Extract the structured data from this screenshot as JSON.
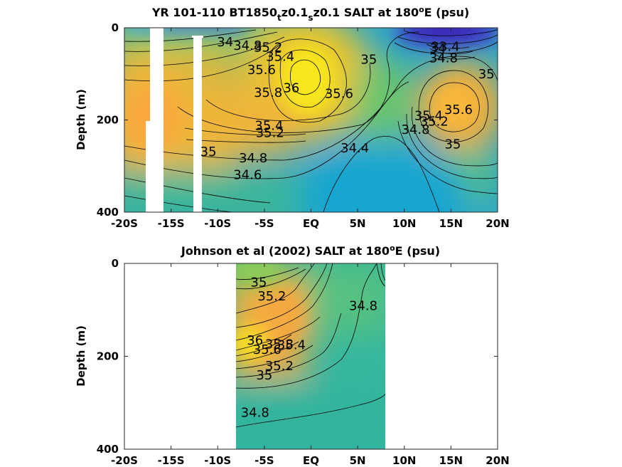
{
  "chart_data": [
    {
      "type": "heatmap",
      "title": {
        "pre": "YR 101-110 BT1850",
        "sub1": "t",
        "mid": "z0.1",
        "sub2": "s",
        "post": "z0.1 SALT at 180",
        "sup": "o",
        "end": "E (psu)"
      },
      "ylabel": "Depth (m)",
      "xlim": [
        -20,
        20
      ],
      "ylim": [
        400,
        0
      ],
      "xticks": [
        -20,
        -15,
        -10,
        -5,
        0,
        5,
        10,
        15,
        20
      ],
      "xticklabels": [
        "-20S",
        "-15S",
        "-10S",
        "-5S",
        "EQ",
        "5N",
        "10N",
        "15N",
        "20N"
      ],
      "yticks": [
        0,
        200,
        400
      ],
      "yticklabels": [
        "0",
        "200",
        "400"
      ],
      "contour_labels": [
        {
          "text": "34",
          "x": -9.2,
          "y": 40
        },
        {
          "text": "34.8",
          "x": -6.8,
          "y": 48
        },
        {
          "text": "35.2",
          "x": -4.6,
          "y": 52
        },
        {
          "text": "35.4",
          "x": -3.3,
          "y": 72
        },
        {
          "text": "35.6",
          "x": -5.3,
          "y": 100
        },
        {
          "text": "35.8",
          "x": -4.6,
          "y": 150
        },
        {
          "text": "36",
          "x": -2.1,
          "y": 140
        },
        {
          "text": "35",
          "x": 6.2,
          "y": 78
        },
        {
          "text": "35.6",
          "x": 3.0,
          "y": 152
        },
        {
          "text": "35.4",
          "x": -4.5,
          "y": 222
        },
        {
          "text": "35.2",
          "x": -4.4,
          "y": 237
        },
        {
          "text": "35",
          "x": -11.0,
          "y": 278
        },
        {
          "text": "34.8",
          "x": -6.2,
          "y": 292
        },
        {
          "text": "34.6",
          "x": -6.8,
          "y": 328
        },
        {
          "text": "34.4",
          "x": 4.7,
          "y": 270
        },
        {
          "text": "35.6",
          "x": 15.8,
          "y": 187
        },
        {
          "text": "35",
          "x": 15.2,
          "y": 262
        },
        {
          "text": "35",
          "x": 18.8,
          "y": 110
        },
        {
          "text": "35.4",
          "x": 12.6,
          "y": 200
        },
        {
          "text": "35.2",
          "x": 13.2,
          "y": 212
        },
        {
          "text": "34.8",
          "x": 11.2,
          "y": 230
        },
        {
          "text": "34",
          "x": 13.6,
          "y": 54
        },
        {
          "text": "33.4",
          "x": 14.4,
          "y": 50
        },
        {
          "text": "34.8",
          "x": 14.2,
          "y": 75
        }
      ],
      "missing_columns": [
        [
          -17.6,
          -16.3
        ],
        [
          -12.8,
          -11.8
        ]
      ]
    },
    {
      "type": "heatmap",
      "title": {
        "pre": "Johnson et al (2002) SALT at 180",
        "sup": "o",
        "end": "E (psu)"
      },
      "ylabel": "Depth (m)",
      "xlim": [
        -20,
        20
      ],
      "ylim": [
        400,
        0
      ],
      "xticks": [
        -20,
        -15,
        -10,
        -5,
        0,
        5,
        10,
        15,
        20
      ],
      "xticklabels": [
        "-20S",
        "-15S",
        "-10S",
        "-5S",
        "EQ",
        "5N",
        "10N",
        "15N",
        "20N"
      ],
      "yticks": [
        0,
        200,
        400
      ],
      "yticklabels": [
        "0",
        "200",
        "400"
      ],
      "data_extent_x": [
        -8,
        8
      ],
      "contour_labels": [
        {
          "text": "35",
          "x": -5.6,
          "y": 50
        },
        {
          "text": "35.2",
          "x": -4.2,
          "y": 80
        },
        {
          "text": "34.8",
          "x": 5.6,
          "y": 100
        },
        {
          "text": "36",
          "x": -6.0,
          "y": 175
        },
        {
          "text": "35.8",
          "x": -3.4,
          "y": 183
        },
        {
          "text": "35.6",
          "x": -4.7,
          "y": 195
        },
        {
          "text": "35.4",
          "x": -2.1,
          "y": 185
        },
        {
          "text": "35.2",
          "x": -3.4,
          "y": 230
        },
        {
          "text": "35",
          "x": -5.0,
          "y": 250
        },
        {
          "text": "34.8",
          "x": -6.0,
          "y": 330
        }
      ]
    }
  ]
}
